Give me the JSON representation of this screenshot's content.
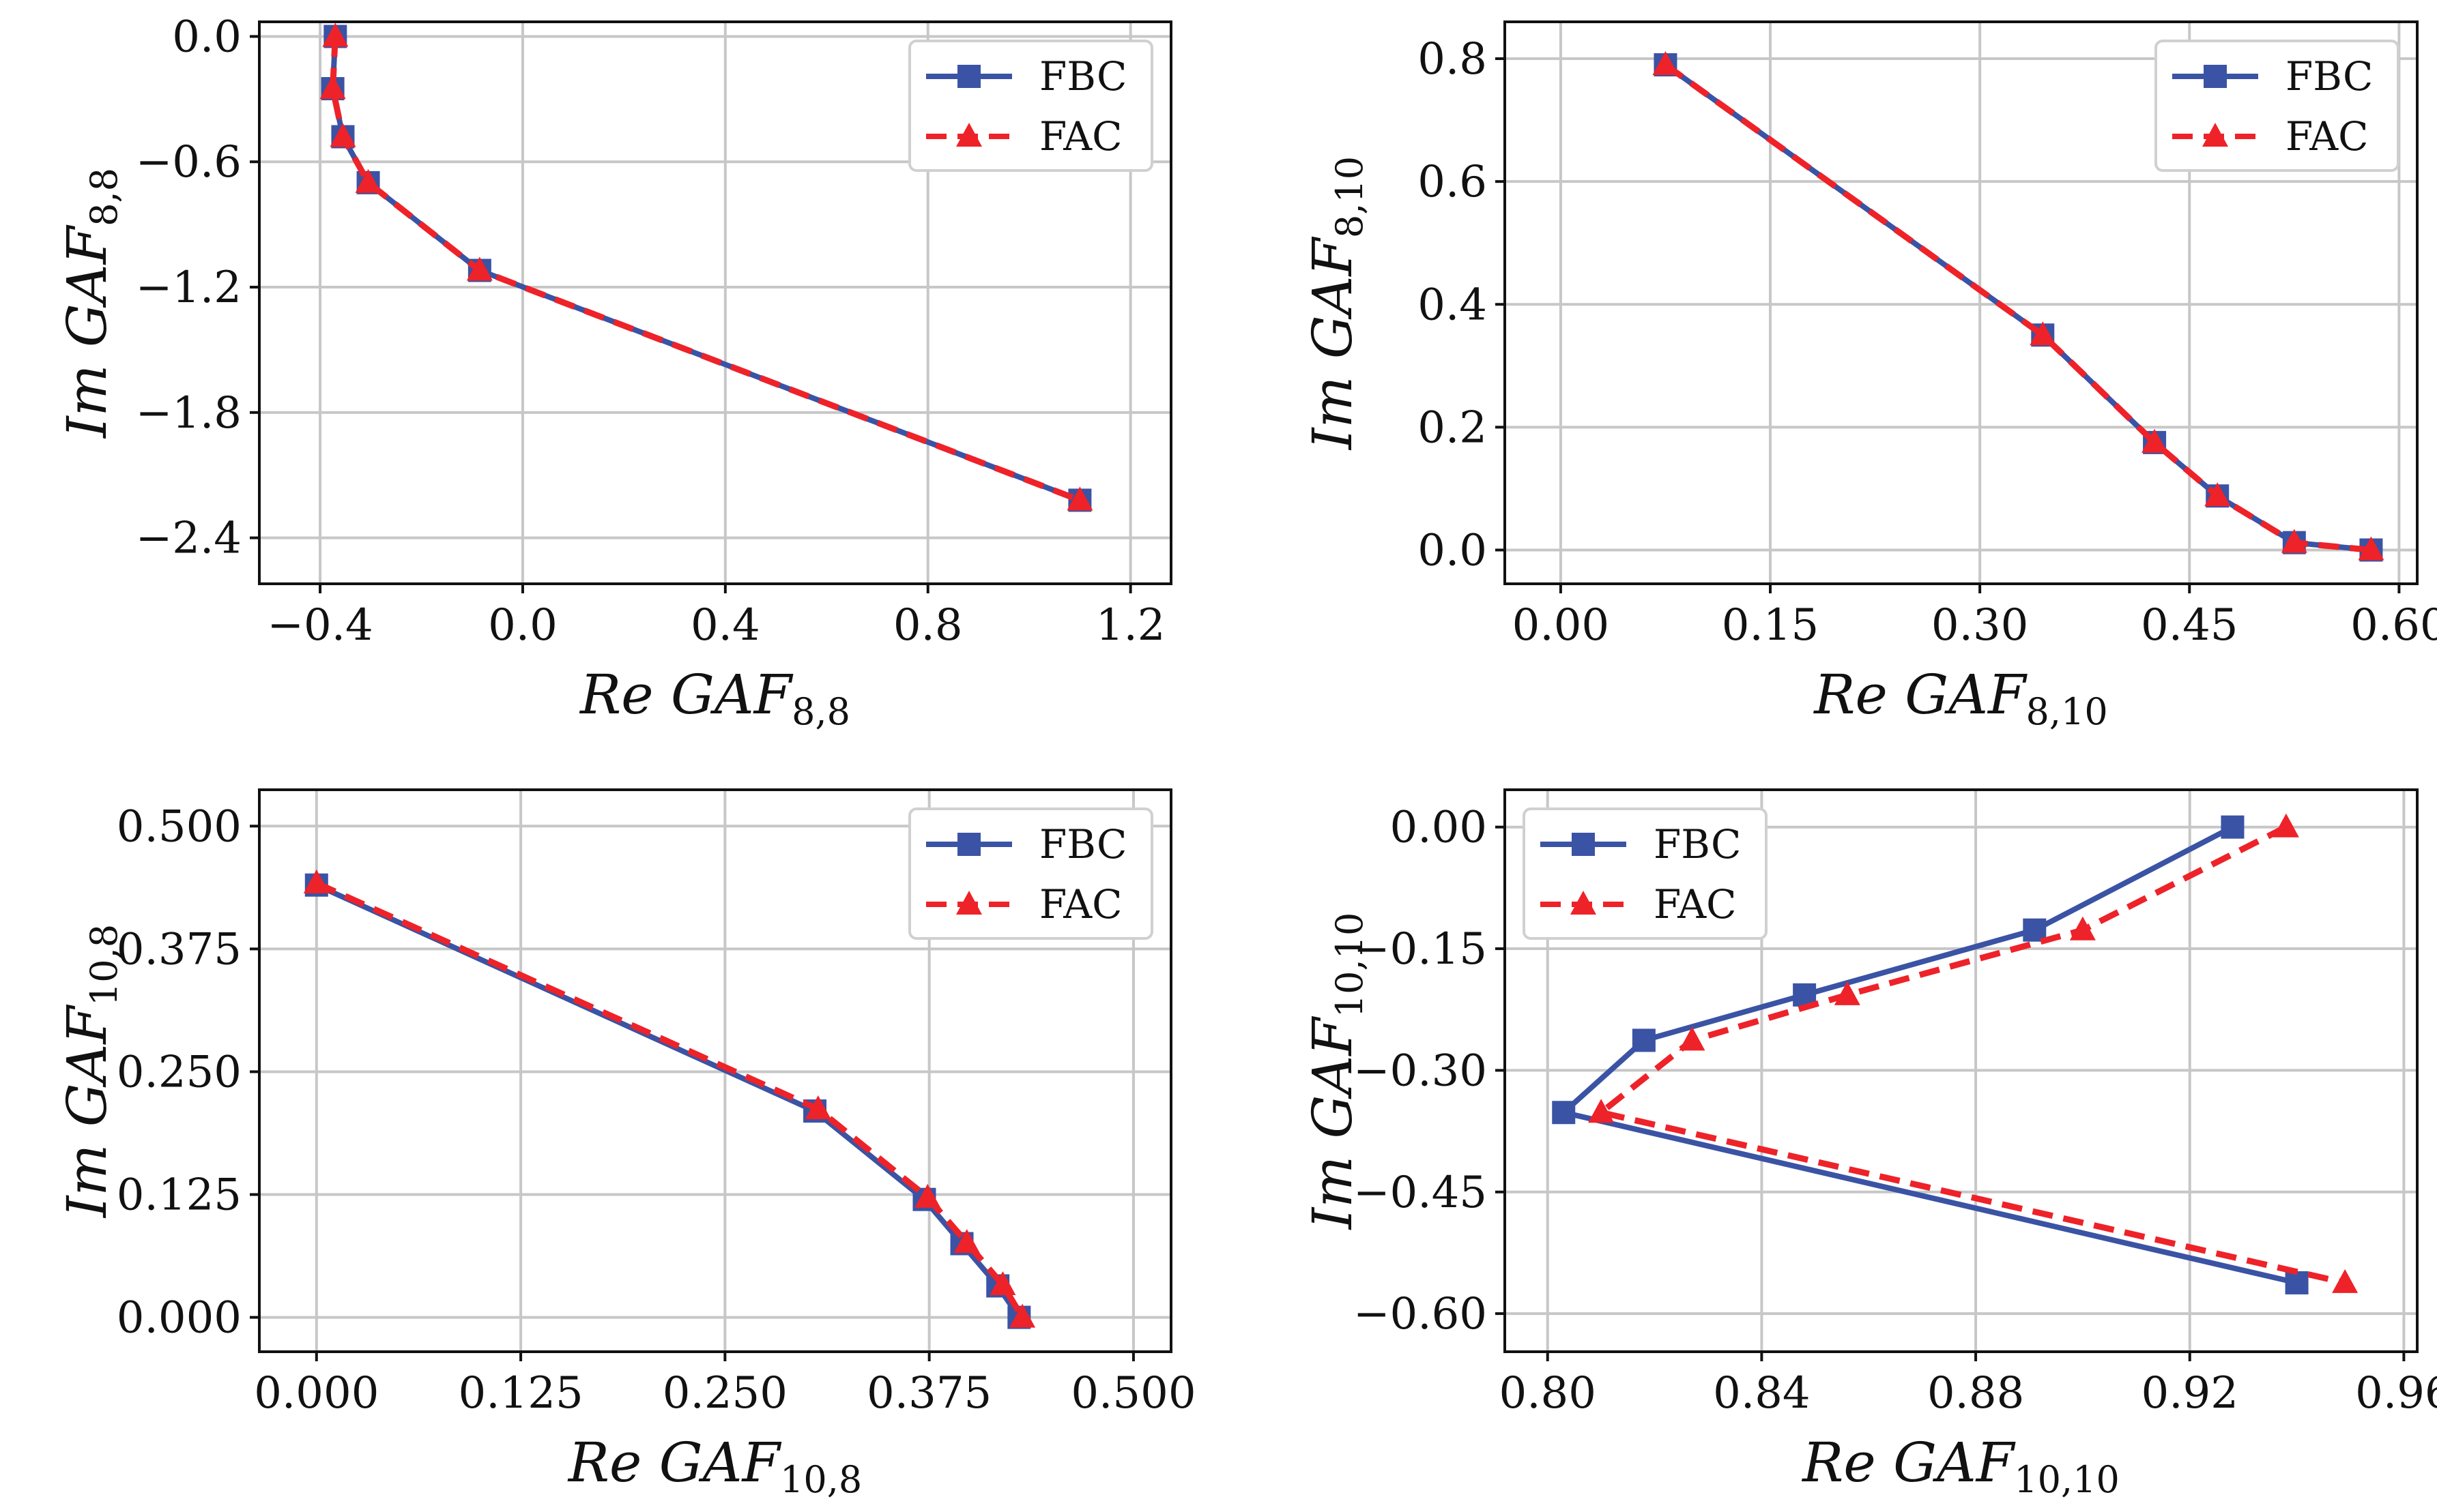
{
  "chart_data": [
    {
      "type": "line",
      "xlabel": {
        "base": "Re GAF",
        "sub": "8,8"
      },
      "ylabel": {
        "base": "Im GAF",
        "sub": "8,8"
      },
      "xlim": [
        -0.52,
        1.28
      ],
      "ylim": [
        -2.62,
        0.07
      ],
      "xticks": [
        -0.4,
        0.0,
        0.4,
        0.8,
        1.2
      ],
      "xtick_labels": [
        "−0.4",
        "0.0",
        "0.4",
        "0.8",
        "1.2"
      ],
      "yticks": [
        0.0,
        -0.6,
        -1.2,
        -1.8,
        -2.4
      ],
      "ytick_labels": [
        "0.0",
        "−0.6",
        "−1.2",
        "−1.8",
        "−2.4"
      ],
      "grid": true,
      "legend_position": "top-right",
      "series": [
        {
          "name": "FBC",
          "color": "#3a53a4",
          "style": "solid",
          "marker": "square",
          "x": [
            -0.37,
            -0.375,
            -0.355,
            -0.305,
            -0.085,
            1.1
          ],
          "y": [
            0.0,
            -0.25,
            -0.48,
            -0.7,
            -1.12,
            -2.22
          ]
        },
        {
          "name": "FAC",
          "color": "#ee2229",
          "style": "dashed",
          "marker": "triangle",
          "x": [
            -0.37,
            -0.375,
            -0.355,
            -0.305,
            -0.085,
            1.1
          ],
          "y": [
            0.0,
            -0.25,
            -0.48,
            -0.7,
            -1.12,
            -2.22
          ]
        }
      ]
    },
    {
      "type": "line",
      "xlabel": {
        "base": "Re GAF",
        "sub": "8,10"
      },
      "ylabel": {
        "base": "Im GAF",
        "sub": "8,10"
      },
      "xlim": [
        -0.04,
        0.613
      ],
      "ylim": [
        -0.055,
        0.86
      ],
      "xticks": [
        0.0,
        0.15,
        0.3,
        0.45,
        0.6
      ],
      "xtick_labels": [
        "0.00",
        "0.15",
        "0.30",
        "0.45",
        "0.60"
      ],
      "yticks": [
        0.0,
        0.2,
        0.4,
        0.6,
        0.8
      ],
      "ytick_labels": [
        "0.0",
        "0.2",
        "0.4",
        "0.6",
        "0.8"
      ],
      "grid": true,
      "legend_position": "top-right",
      "series": [
        {
          "name": "FBC",
          "color": "#3a53a4",
          "style": "solid",
          "marker": "square",
          "x": [
            0.075,
            0.345,
            0.425,
            0.47,
            0.525,
            0.58
          ],
          "y": [
            0.79,
            0.35,
            0.175,
            0.088,
            0.012,
            0.0
          ]
        },
        {
          "name": "FAC",
          "color": "#ee2229",
          "style": "dashed",
          "marker": "triangle",
          "x": [
            0.075,
            0.345,
            0.425,
            0.47,
            0.525,
            0.58
          ],
          "y": [
            0.79,
            0.35,
            0.175,
            0.088,
            0.012,
            0.0
          ]
        }
      ]
    },
    {
      "type": "line",
      "xlabel": {
        "base": "Re GAF",
        "sub": "10,8"
      },
      "ylabel": {
        "base": "Im GAF",
        "sub": "10,8"
      },
      "xlim": [
        -0.035,
        0.523
      ],
      "ylim": [
        -0.035,
        0.537
      ],
      "xticks": [
        0.0,
        0.125,
        0.25,
        0.375,
        0.5
      ],
      "xtick_labels": [
        "0.000",
        "0.125",
        "0.250",
        "0.375",
        "0.500"
      ],
      "yticks": [
        0.0,
        0.125,
        0.25,
        0.375,
        0.5
      ],
      "ytick_labels": [
        "0.000",
        "0.125",
        "0.250",
        "0.375",
        "0.500"
      ],
      "grid": true,
      "legend_position": "top-right",
      "series": [
        {
          "name": "FBC",
          "color": "#3a53a4",
          "style": "solid",
          "marker": "square",
          "x": [
            0.0,
            0.305,
            0.372,
            0.395,
            0.417,
            0.43
          ],
          "y": [
            0.44,
            0.21,
            0.12,
            0.075,
            0.032,
            0.0
          ]
        },
        {
          "name": "FAC",
          "color": "#ee2229",
          "style": "dashed",
          "marker": "triangle",
          "x": [
            0.0,
            0.307,
            0.374,
            0.398,
            0.42,
            0.432
          ],
          "y": [
            0.442,
            0.212,
            0.122,
            0.076,
            0.033,
            0.0
          ]
        }
      ]
    },
    {
      "type": "line",
      "xlabel": {
        "base": "Re GAF",
        "sub": "10,10"
      },
      "ylabel": {
        "base": "Im GAF",
        "sub": "10,10"
      },
      "xlim": [
        0.792,
        0.9625
      ],
      "ylim": [
        -0.647,
        0.046
      ],
      "xticks": [
        0.8,
        0.84,
        0.88,
        0.92,
        0.96
      ],
      "xtick_labels": [
        "0.80",
        "0.84",
        "0.88",
        "0.92",
        "0.96"
      ],
      "yticks": [
        0.0,
        -0.15,
        -0.3,
        -0.45,
        -0.6
      ],
      "ytick_labels": [
        "0.00",
        "−0.15",
        "−0.30",
        "−0.45",
        "−0.60"
      ],
      "grid": true,
      "legend_position": "top-left",
      "series": [
        {
          "name": "FBC",
          "color": "#3a53a4",
          "style": "solid",
          "marker": "square",
          "x": [
            0.928,
            0.891,
            0.848,
            0.818,
            0.803,
            0.94
          ],
          "y": [
            0.0,
            -0.127,
            -0.207,
            -0.263,
            -0.352,
            -0.562
          ]
        },
        {
          "name": "FAC",
          "color": "#ee2229",
          "style": "dashed",
          "marker": "triangle",
          "x": [
            0.938,
            0.9,
            0.856,
            0.827,
            0.81,
            0.949
          ],
          "y": [
            0.0,
            -0.127,
            -0.207,
            -0.263,
            -0.352,
            -0.562
          ]
        }
      ]
    }
  ]
}
